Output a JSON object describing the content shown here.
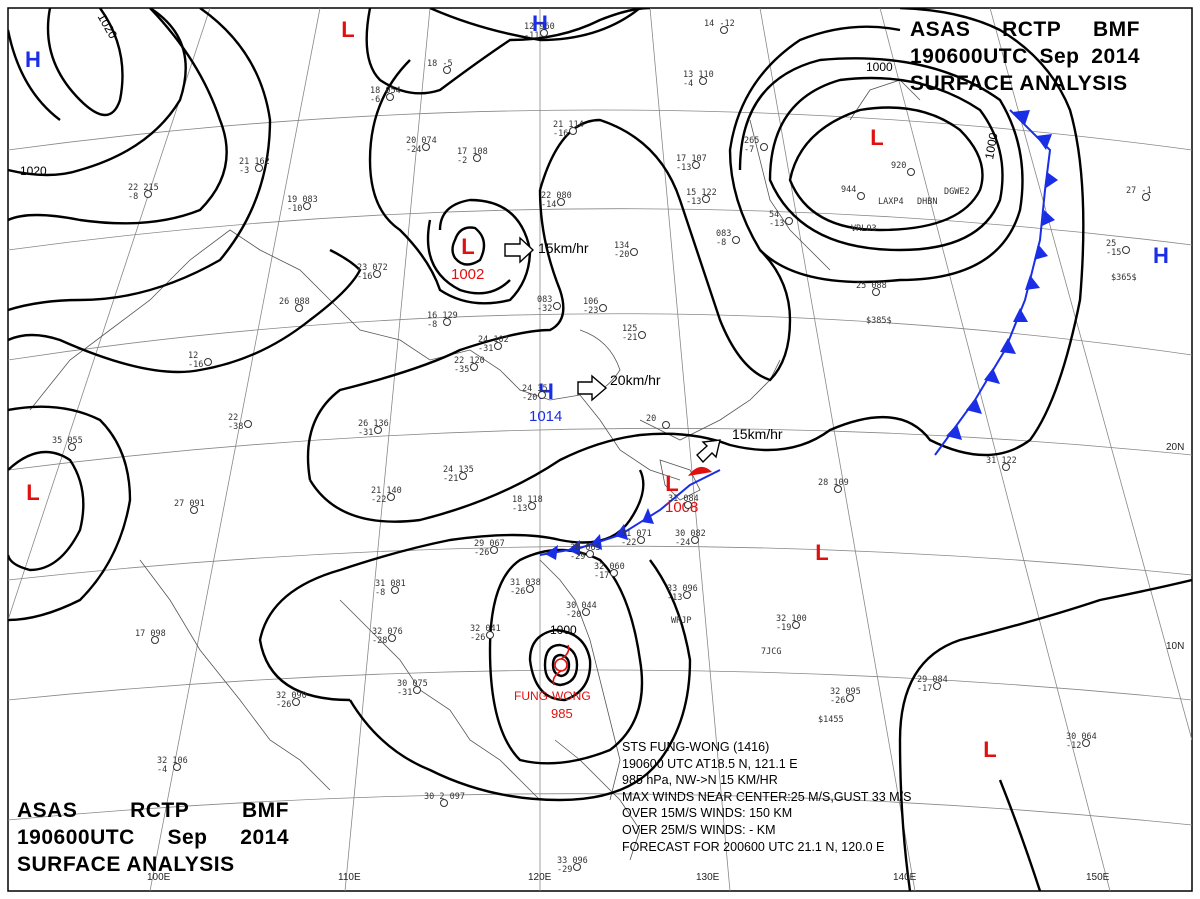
{
  "header": {
    "line1": [
      "ASAS",
      "RCTP",
      "BMF"
    ],
    "line2": [
      "190600UTC",
      "Sep",
      "2014"
    ],
    "line3": "SURFACE ANALYSIS"
  },
  "pressure_systems": [
    {
      "id": "h-nw",
      "type": "H",
      "color": "#1a2ee6"
    },
    {
      "id": "l-n",
      "type": "L",
      "color": "#e01010"
    },
    {
      "id": "h-n",
      "type": "H",
      "color": "#1a2ee6"
    },
    {
      "id": "l-ne",
      "type": "L",
      "color": "#e01010"
    },
    {
      "id": "l-center",
      "type": "L",
      "color": "#e01010",
      "pressure": "1002"
    },
    {
      "id": "h-center",
      "type": "H",
      "color": "#1a2ee6",
      "pressure": "1014"
    },
    {
      "id": "l-front",
      "type": "L",
      "color": "#e01010",
      "pressure": "1008"
    },
    {
      "id": "l-w",
      "type": "L",
      "color": "#e01010"
    },
    {
      "id": "h-e",
      "type": "H",
      "color": "#1a2ee6"
    },
    {
      "id": "l-se1",
      "type": "L",
      "color": "#e01010"
    },
    {
      "id": "l-se2",
      "type": "L",
      "color": "#e01010"
    }
  ],
  "typhoon": {
    "name": "FUNG-WONG",
    "pressure": "985",
    "color": "#e01010"
  },
  "isobar_labels": [
    "1020",
    "1020",
    "1000",
    "1000",
    "1000"
  ],
  "movements": [
    "15km/hr",
    "20km/hr",
    "15km/hr"
  ],
  "latitudes": [
    "20N",
    "10N"
  ],
  "longitudes": [
    "100E",
    "110E",
    "120E",
    "130E",
    "140E",
    "150E"
  ],
  "storm_info": [
    "STS  FUNG-WONG  (1416)",
    "190600 UTC  AT18.5 N, 121.1 E",
    "985 hPa, NW->N  15 KM/HR",
    "MAX WINDS NEAR CENTER:25 M/S,GUST 33 M/S",
    "OVER 15M/S WINDS: 150 KM",
    "OVER 25M/S WINDS: - KM",
    "FORECAST FOR 200600 UTC 21.1 N, 120.0 E"
  ],
  "station_plots": [
    "22 080\n-14",
    "21 114\n-16",
    "17 108\n-2",
    "19 083\n-10",
    "23 072\n-16",
    "26 088",
    "16 129\n-8",
    "24 102\n-31",
    "22 120\n-35",
    "26 136\n-31",
    "24 135\n-21",
    "21 140\n-22",
    "22\n-38",
    "12\n-16",
    "35 055",
    "27 091",
    "17 098",
    "32 106\n-4",
    "30 2 097",
    "33 096\n-29",
    "31 081\n-8",
    "32 076\n-28",
    "30 075\n-31",
    "32 090\n-26",
    "32 041\n-26",
    "31 038\n-26",
    "29 067\n-26",
    "30 065\n-29",
    "32 060\n-17",
    "30 044\n-20",
    "31 071\n-22",
    "30 082\n-24",
    "33 096\n-13",
    "31 084",
    "32 100\n-19",
    "32 095\n-26",
    "29 084\n-17",
    "30 064\n-12",
    "31 122",
    "28 109",
    "25 088",
    "25\n-15",
    "27 -1",
    "15 122\n-13",
    "17 107\n-13",
    "13 110\n-4",
    "14 -12",
    "18 054\n-6",
    "20 074\n-24",
    "18 -5",
    "22 215\n-8",
    "21 162\n-3",
    "12 960\n-11",
    "134\n-20",
    "083\n-32",
    "106\n-23",
    "125\n-21",
    "24 35\n-20",
    "20",
    "18 118\n-13",
    "265\n-7",
    "54\n-13",
    "083\n-8",
    "944",
    "920"
  ],
  "station_codes": [
    "VRLO3",
    "LAXP4",
    "DHBN",
    "DGWE2",
    "$385$",
    "7JCG",
    "$1455",
    "$365$",
    "WRJP"
  ]
}
